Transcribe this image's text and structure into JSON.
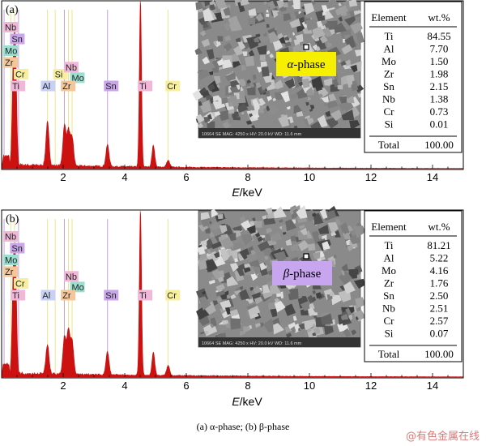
{
  "chart_data": [
    {
      "type": "area",
      "panel_label": "(a)",
      "xlabel_italic": "E",
      "xlabel_rest": "/keV",
      "xlim": [
        0,
        15
      ],
      "xticks": [
        "2",
        "4",
        "6",
        "8",
        "10",
        "12",
        "14"
      ],
      "peaks": [
        {
          "x": 0.38,
          "h": 0.55,
          "w": 0.04
        },
        {
          "x": 0.45,
          "h": 0.62,
          "w": 0.04
        },
        {
          "x": 1.49,
          "h": 0.26,
          "w": 0.05
        },
        {
          "x": 2.04,
          "h": 0.24,
          "w": 0.05
        },
        {
          "x": 2.17,
          "h": 0.21,
          "w": 0.05
        },
        {
          "x": 2.29,
          "h": 0.17,
          "w": 0.05
        },
        {
          "x": 3.44,
          "h": 0.13,
          "w": 0.05
        },
        {
          "x": 4.51,
          "h": 1.0,
          "w": 0.035
        },
        {
          "x": 4.93,
          "h": 0.13,
          "w": 0.045
        },
        {
          "x": 5.41,
          "h": 0.04,
          "w": 0.05
        }
      ],
      "element_tags": [
        {
          "text": "Nb",
          "x": 0.08,
          "row": 0,
          "color": "#f1b7d8"
        },
        {
          "text": "Sn",
          "x": 0.3,
          "row": 1,
          "color": "#c9a6e8"
        },
        {
          "text": "Mo",
          "x": 0.08,
          "row": 2,
          "color": "#9adfd0"
        },
        {
          "text": "Zr",
          "x": 0.08,
          "row": 3,
          "color": "#f3c79a"
        },
        {
          "text": "Cr",
          "x": 0.42,
          "row": 4,
          "color": "#f7ef9e"
        },
        {
          "text": "Ti",
          "x": 0.32,
          "row": 5,
          "color": "#f1b7d8"
        },
        {
          "text": "Si",
          "x": 1.7,
          "row": 4,
          "color": "#f7ef9e"
        },
        {
          "text": "Nb",
          "x": 2.05,
          "row": 3.4,
          "color": "#f1b7d8"
        },
        {
          "text": "Mo",
          "x": 2.25,
          "row": 4.3,
          "color": "#9adfd0"
        },
        {
          "text": "Al",
          "x": 1.3,
          "row": 5,
          "color": "#c8d0f4"
        },
        {
          "text": "Zr",
          "x": 1.95,
          "row": 5,
          "color": "#f3c79a"
        },
        {
          "text": "Sn",
          "x": 3.35,
          "row": 5,
          "color": "#c9a6e8"
        },
        {
          "text": "Ti",
          "x": 4.45,
          "row": 5,
          "color": "#f1b7d8"
        },
        {
          "text": "Cr",
          "x": 5.35,
          "row": 5,
          "color": "#f7ef9e"
        }
      ],
      "phase_label_greek": "α",
      "phase_label_rest": "-phase",
      "phase_label_color": "#f6ef00",
      "micrograph_footer": "10664  SE  MAG: 4250 x  HV: 20.0 kV  WD: 11.6 mm",
      "table_header": [
        "Element",
        "wt.%"
      ],
      "table_rows": [
        [
          "Ti",
          "84.55"
        ],
        [
          "Al",
          "7.70"
        ],
        [
          "Mo",
          "1.50"
        ],
        [
          "Zr",
          "1.98"
        ],
        [
          "Sn",
          "2.15"
        ],
        [
          "Nb",
          "1.38"
        ],
        [
          "Cr",
          "0.73"
        ],
        [
          "Si",
          "0.01"
        ]
      ],
      "table_total": [
        "Total",
        "100.00"
      ]
    },
    {
      "type": "area",
      "panel_label": "(b)",
      "xlabel_italic": "E",
      "xlabel_rest": "/keV",
      "xlim": [
        0,
        15
      ],
      "xticks": [
        "2",
        "4",
        "6",
        "8",
        "10",
        "12",
        "14"
      ],
      "peaks": [
        {
          "x": 0.38,
          "h": 0.55,
          "w": 0.04
        },
        {
          "x": 0.45,
          "h": 0.6,
          "w": 0.04
        },
        {
          "x": 1.49,
          "h": 0.18,
          "w": 0.05
        },
        {
          "x": 2.04,
          "h": 0.22,
          "w": 0.05
        },
        {
          "x": 2.17,
          "h": 0.26,
          "w": 0.05
        },
        {
          "x": 2.29,
          "h": 0.2,
          "w": 0.05
        },
        {
          "x": 3.44,
          "h": 0.14,
          "w": 0.05
        },
        {
          "x": 4.51,
          "h": 1.0,
          "w": 0.035
        },
        {
          "x": 4.93,
          "h": 0.14,
          "w": 0.045
        },
        {
          "x": 5.41,
          "h": 0.06,
          "w": 0.05
        }
      ],
      "element_tags": [
        {
          "text": "Nb",
          "x": 0.08,
          "row": 0,
          "color": "#f1b7d8"
        },
        {
          "text": "Sn",
          "x": 0.3,
          "row": 1,
          "color": "#c9a6e8"
        },
        {
          "text": "Mo",
          "x": 0.08,
          "row": 2,
          "color": "#9adfd0"
        },
        {
          "text": "Zr",
          "x": 0.08,
          "row": 3,
          "color": "#f3c79a"
        },
        {
          "text": "Cr",
          "x": 0.42,
          "row": 4,
          "color": "#f7ef9e"
        },
        {
          "text": "Ti",
          "x": 0.32,
          "row": 5,
          "color": "#f1b7d8"
        },
        {
          "text": "Nb",
          "x": 2.05,
          "row": 3.4,
          "color": "#f1b7d8"
        },
        {
          "text": "Mo",
          "x": 2.25,
          "row": 4.3,
          "color": "#9adfd0"
        },
        {
          "text": "Al",
          "x": 1.3,
          "row": 5,
          "color": "#c8d0f4"
        },
        {
          "text": "Zr",
          "x": 1.95,
          "row": 5,
          "color": "#f3c79a"
        },
        {
          "text": "Sn",
          "x": 3.35,
          "row": 5,
          "color": "#c9a6e8"
        },
        {
          "text": "Ti",
          "x": 4.45,
          "row": 5,
          "color": "#f1b7d8"
        },
        {
          "text": "Cr",
          "x": 5.35,
          "row": 5,
          "color": "#f7ef9e"
        }
      ],
      "phase_label_greek": "β",
      "phase_label_rest": "-phase",
      "phase_label_color": "#c8a6ef",
      "micrograph_footer": "10664  SE  MAG: 4250 x  HV: 20.0 kV  WD: 11.6 mm",
      "table_header": [
        "Element",
        "wt.%"
      ],
      "table_rows": [
        [
          "Ti",
          "81.21"
        ],
        [
          "Al",
          "5.22"
        ],
        [
          "Mo",
          "4.16"
        ],
        [
          "Zr",
          "1.76"
        ],
        [
          "Sn",
          "2.50"
        ],
        [
          "Nb",
          "2.51"
        ],
        [
          "Cr",
          "2.57"
        ],
        [
          "Si",
          "0.07"
        ]
      ],
      "table_total": [
        "Total",
        "100.00"
      ]
    }
  ],
  "caption": "(a) α-phase; (b) β-phase",
  "watermark": "@有色金属在线",
  "colors": {
    "spectrum": "#cc1111",
    "overlay_lines": "#b58ad6",
    "yellow_lines": "#e8e070",
    "sem_background": "#8a8a8a"
  }
}
